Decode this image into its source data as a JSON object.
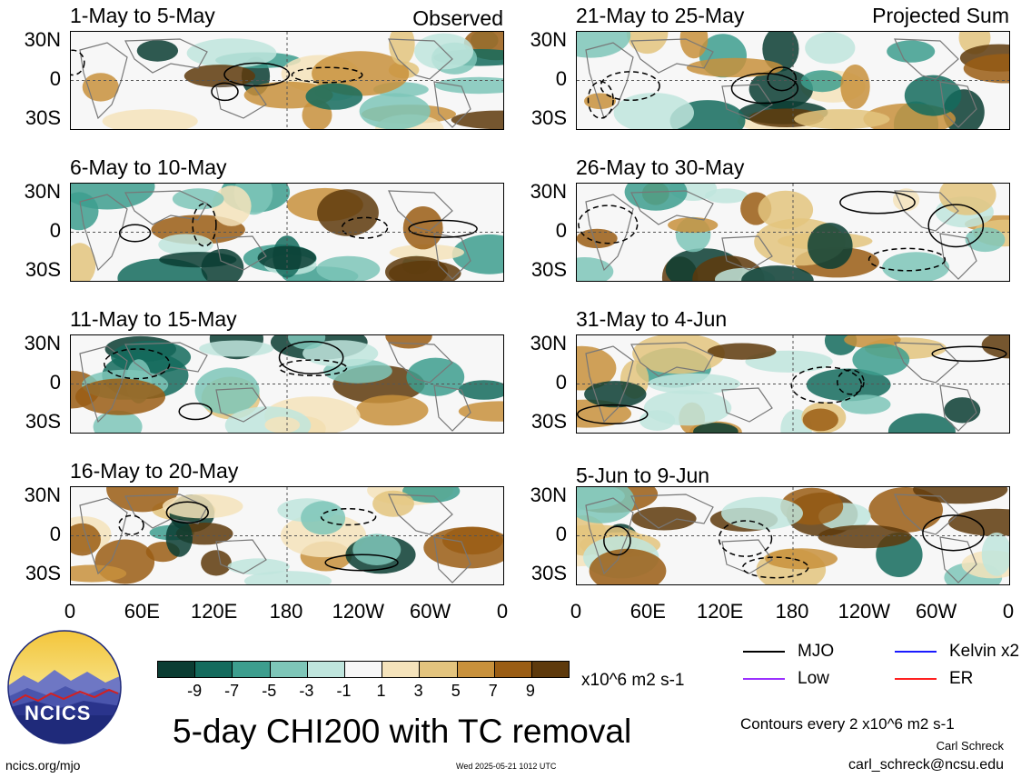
{
  "panels": {
    "left": [
      {
        "title": "1-May to 5-May",
        "tag": "Observed"
      },
      {
        "title": "6-May to 10-May",
        "tag": ""
      },
      {
        "title": "11-May to 15-May",
        "tag": ""
      },
      {
        "title": "16-May to 20-May",
        "tag": ""
      }
    ],
    "right": [
      {
        "title": "21-May to 25-May",
        "tag": "Projected Sum"
      },
      {
        "title": "26-May to 30-May",
        "tag": ""
      },
      {
        "title": "31-May to 4-Jun",
        "tag": ""
      },
      {
        "title": "5-Jun to 9-Jun",
        "tag": ""
      }
    ]
  },
  "lat_labels": [
    "30N",
    "0",
    "30S"
  ],
  "lon_labels": [
    "0",
    "60E",
    "120E",
    "180",
    "120W",
    "60W",
    "0"
  ],
  "colorbar": {
    "colors": [
      "#0b3d33",
      "#146b5d",
      "#3d9e8e",
      "#7ec6b8",
      "#bfe5dd",
      "#f7f7f7",
      "#f5e3bb",
      "#e3c47e",
      "#c8913c",
      "#9a5d14",
      "#5e3a0c"
    ],
    "ticks": [
      "-9",
      "-7",
      "-5",
      "-3",
      "-1",
      "1",
      "3",
      "5",
      "7",
      "9"
    ],
    "units": "x10^6 m2 s-1"
  },
  "main_title": "5-day CHI200 with TC removal",
  "legend": [
    {
      "label": "MJO",
      "color": "#000000"
    },
    {
      "label": "Kelvin x2",
      "color": "#1a1aff"
    },
    {
      "label": "Low",
      "color": "#9b30ff"
    },
    {
      "label": "ER",
      "color": "#ff2020"
    }
  ],
  "contour_note": "Contours every 2 x10^6 m2 s-1",
  "author": "Carl Schreck",
  "email": "carl_schreck@ncsu.edu",
  "site": "ncics.org/mjo",
  "timestamp": "Wed 2025-05-21 1012 UTC",
  "logo": {
    "text": "NCICS"
  }
}
